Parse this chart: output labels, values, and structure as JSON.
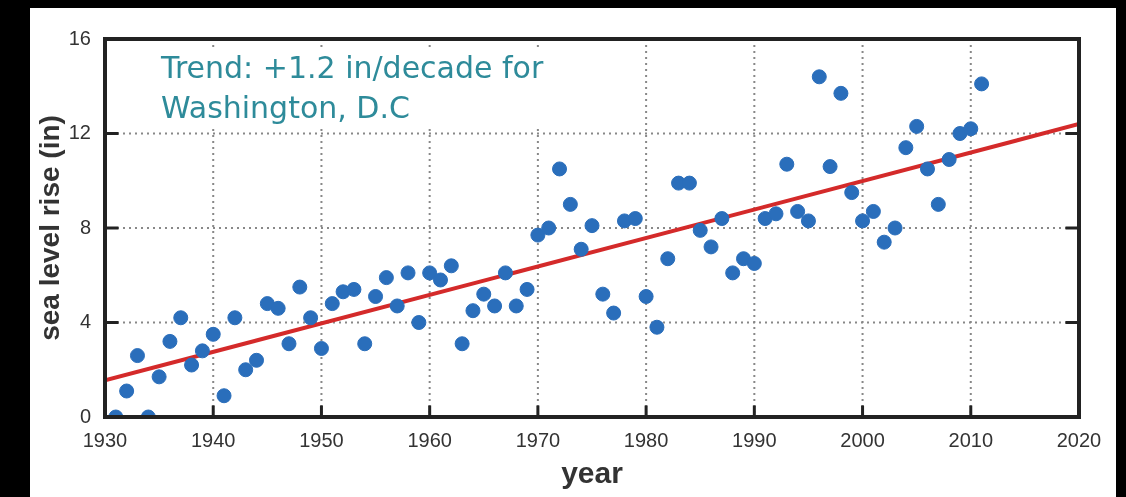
{
  "chart_data": {
    "type": "scatter",
    "xlabel": "year",
    "ylabel": "sea level rise (in)",
    "annotations": [
      "Trend: +1.2 in/decade for Washington, D.C"
    ],
    "x": [
      1931,
      1932,
      1933,
      1934,
      1935,
      1936,
      1937,
      1938,
      1939,
      1940,
      1941,
      1942,
      1943,
      1944,
      1945,
      1946,
      1947,
      1948,
      1949,
      1950,
      1951,
      1952,
      1953,
      1954,
      1955,
      1956,
      1957,
      1958,
      1959,
      1960,
      1961,
      1962,
      1963,
      1964,
      1965,
      1966,
      1967,
      1968,
      1969,
      1970,
      1971,
      1972,
      1973,
      1974,
      1975,
      1976,
      1977,
      1978,
      1979,
      1980,
      1981,
      1982,
      1983,
      1984,
      1985,
      1986,
      1987,
      1988,
      1989,
      1990,
      1991,
      1992,
      1993,
      1994,
      1995,
      1996,
      1997,
      1998,
      1999,
      2000,
      2001,
      2002,
      2003,
      2004,
      2005,
      2006,
      2007,
      2008,
      2009,
      2010,
      2011
    ],
    "series": [
      {
        "color": "#2a6ebb",
        "values": [
          0,
          1.1,
          2.6,
          0,
          1.7,
          3.2,
          4.2,
          2.2,
          2.8,
          3.5,
          0.9,
          4.2,
          2.0,
          2.4,
          4.8,
          4.6,
          3.1,
          5.5,
          4.2,
          2.9,
          4.8,
          5.3,
          5.4,
          3.1,
          5.1,
          5.9,
          4.7,
          6.1,
          4.0,
          6.1,
          5.8,
          6.4,
          3.1,
          4.5,
          5.2,
          4.7,
          6.1,
          4.7,
          5.4,
          7.7,
          8.0,
          10.5,
          9.0,
          7.1,
          8.1,
          5.2,
          4.4,
          8.3,
          8.4,
          5.1,
          3.8,
          6.7,
          9.9,
          9.9,
          7.9,
          7.2,
          8.4,
          6.1,
          6.7,
          6.5,
          8.4,
          8.6,
          10.7,
          8.7,
          8.3,
          14.4,
          10.6,
          13.7,
          9.5,
          8.3,
          8.7,
          7.4,
          8.0,
          11.4,
          12.3,
          10.5,
          9.0,
          10.9,
          12.0,
          12.2,
          14.1
        ]
      },
      {
        "type": "line",
        "marker": "none",
        "color": "#d42a2a",
        "x": [
          1930,
          2020
        ],
        "values": [
          1.55,
          12.4
        ]
      }
    ],
    "xlim": [
      1930,
      2020
    ],
    "xticks": [
      1930,
      1940,
      1950,
      1960,
      1970,
      1980,
      1990,
      2000,
      2010,
      2020
    ],
    "ylim": [
      0,
      16
    ],
    "yticks": [
      0,
      4,
      8,
      12,
      16
    ],
    "grid": true,
    "legend": false,
    "marker": "circle"
  }
}
